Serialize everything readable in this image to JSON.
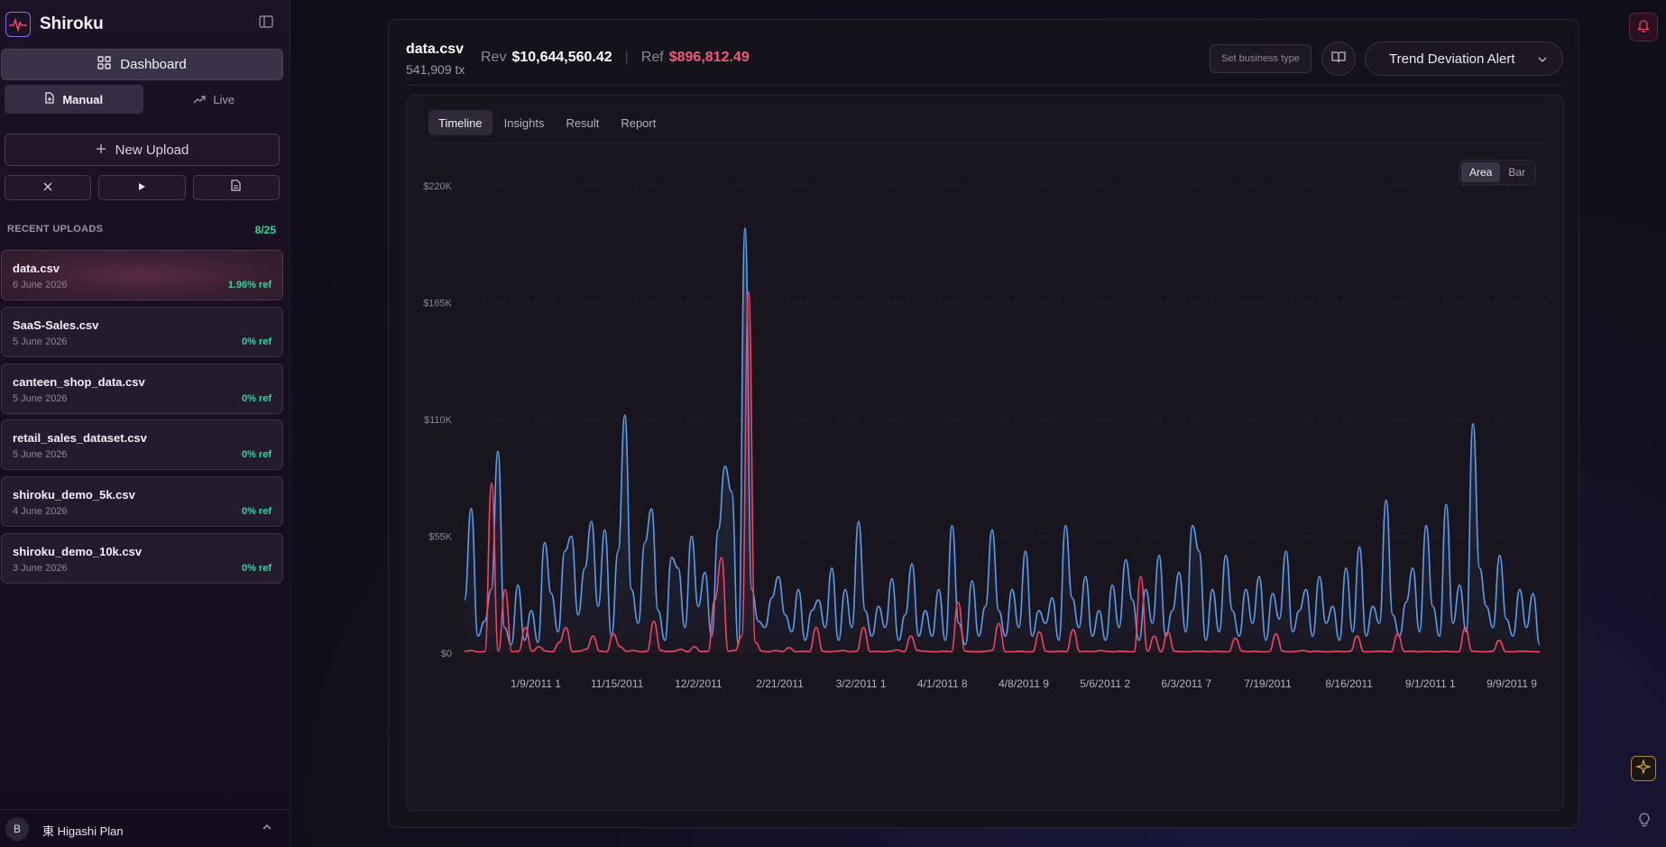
{
  "app": {
    "name": "Shiroku"
  },
  "sidebar": {
    "dashboard_label": "Dashboard",
    "modes": [
      {
        "label": "Manual",
        "active": true
      },
      {
        "label": "Live",
        "active": false
      }
    ],
    "new_upload_label": "New Upload",
    "recent": {
      "title": "RECENT UPLOADS",
      "count": "8/25",
      "items": [
        {
          "name": "data.csv",
          "date": "6 June 2026",
          "ref": "1.96% ref",
          "active": true
        },
        {
          "name": "SaaS-Sales.csv",
          "date": "5 June 2026",
          "ref": "0% ref"
        },
        {
          "name": "canteen_shop_data.csv",
          "date": "5 June 2026",
          "ref": "0% ref"
        },
        {
          "name": "retail_sales_dataset.csv",
          "date": "5 June 2026",
          "ref": "0% ref"
        },
        {
          "name": "shiroku_demo_5k.csv",
          "date": "4 June 2026",
          "ref": "0% ref"
        },
        {
          "name": "shiroku_demo_10k.csv",
          "date": "3 June 2026",
          "ref": "0% ref"
        }
      ]
    },
    "footer": {
      "avatar_initial": "B",
      "plan": "東 Higashi Plan"
    }
  },
  "header": {
    "file_name": "data.csv",
    "tx_count": "541,909 tx",
    "rev_label": "Rev",
    "rev_value": "$10,644,560.42",
    "ref_label": "Ref",
    "ref_value": "$896,812.49",
    "business_type_placeholder": "Set business type",
    "alert_select_value": "Trend Deviation Alert"
  },
  "tabs": [
    {
      "label": "Timeline",
      "active": true
    },
    {
      "label": "Insights",
      "active": false
    },
    {
      "label": "Result",
      "active": false
    },
    {
      "label": "Report",
      "active": false
    }
  ],
  "chart_toggle": [
    {
      "label": "Area",
      "active": true
    },
    {
      "label": "Bar",
      "active": false
    }
  ],
  "colors": {
    "revenue_series": "#5b9ded",
    "refund_series": "#f0445f",
    "accent_green": "#35d69a",
    "ref_red": "#f25a78"
  },
  "icons": {
    "logo": "pulse-chart-icon",
    "collapse": "sidebar-toggle-icon",
    "dashboard": "grid-icon",
    "manual": "document-icon",
    "live": "trend-up-icon",
    "new_upload": "plus-icon",
    "actions": [
      "close-icon",
      "play-icon",
      "file-text-icon"
    ],
    "book": "book-open-icon",
    "bell": "bell-icon",
    "sparkle": "sparkle-icon",
    "bulb": "lightbulb-icon"
  },
  "chart_data": {
    "type": "area",
    "title": "",
    "xlabel": "",
    "ylabel": "",
    "ylim": [
      0,
      220000
    ],
    "y_ticks": [
      "$0",
      "$55K",
      "$110K",
      "$165K",
      "$220K"
    ],
    "x_ticks": [
      "1/9/2011 1",
      "11/15/2011",
      "12/2/2011",
      "2/21/2011",
      "3/2/2011 1",
      "4/1/2011 8",
      "4/8/2011 9",
      "5/6/2011 2",
      "6/3/2011 7",
      "7/19/2011",
      "8/16/2011",
      "9/1/2011 1",
      "9/9/2011 9"
    ],
    "grid": true,
    "legend": "none",
    "series": [
      {
        "name": "",
        "color": "#5b9ded",
        "values": [
          25000,
          68000,
          8000,
          15000,
          30000,
          95000,
          12000,
          4000,
          32000,
          6000,
          20000,
          5000,
          52000,
          28000,
          10000,
          48000,
          55000,
          18000,
          40000,
          62000,
          22000,
          58000,
          8000,
          48000,
          112000,
          30000,
          14000,
          52000,
          68000,
          20000,
          6000,
          45000,
          40000,
          12000,
          55000,
          22000,
          38000,
          8000,
          58000,
          88000,
          76000,
          4000,
          200000,
          30000,
          15000,
          12000,
          26000,
          36000,
          18000,
          10000,
          30000,
          6000,
          20000,
          25000,
          12000,
          40000,
          6000,
          30000,
          12000,
          62000,
          20000,
          8000,
          22000,
          12000,
          35000,
          6000,
          18000,
          42000,
          8000,
          20000,
          8000,
          30000,
          6000,
          60000,
          14000,
          4000,
          34000,
          8000,
          22000,
          58000,
          20000,
          8000,
          30000,
          12000,
          48000,
          8000,
          20000,
          14000,
          26000,
          6000,
          60000,
          26000,
          12000,
          36000,
          8000,
          20000,
          6000,
          32000,
          12000,
          44000,
          25000,
          6000,
          30000,
          14000,
          46000,
          8000,
          20000,
          38000,
          10000,
          60000,
          48000,
          6000,
          30000,
          10000,
          46000,
          20000,
          8000,
          30000,
          14000,
          36000,
          6000,
          28000,
          16000,
          48000,
          10000,
          20000,
          30000,
          8000,
          36000,
          14000,
          22000,
          6000,
          40000,
          10000,
          50000,
          8000,
          22000,
          14000,
          72000,
          18000,
          8000,
          24000,
          40000,
          10000,
          60000,
          22000,
          8000,
          70000,
          14000,
          32000,
          10000,
          108000,
          40000,
          22000,
          12000,
          46000,
          16000,
          8000,
          30000,
          12000,
          28000,
          4000
        ]
      },
      {
        "name": "",
        "color": "#f0445f",
        "values": [
          800,
          1200,
          500,
          700,
          80000,
          900,
          30000,
          600,
          900,
          12000,
          800,
          3000,
          900,
          600,
          5000,
          12000,
          700,
          900,
          1800,
          8000,
          900,
          600,
          9000,
          3000,
          800,
          1200,
          600,
          900,
          15000,
          1200,
          700,
          900,
          1800,
          600,
          3000,
          700,
          900,
          25000,
          45000,
          900,
          1200,
          8000,
          170000,
          5000,
          900,
          600,
          1200,
          700,
          2500,
          600,
          900,
          700,
          12000,
          800,
          600,
          900,
          1200,
          600,
          900,
          12000,
          700,
          800,
          600,
          900,
          1500,
          600,
          8000,
          1200,
          900,
          700,
          600,
          900,
          600,
          24000,
          900,
          700,
          600,
          800,
          1200,
          14000,
          700,
          600,
          900,
          700,
          600,
          10000,
          800,
          600,
          900,
          700,
          11000,
          600,
          800,
          700,
          1200,
          800,
          600,
          900,
          700,
          600,
          36000,
          900,
          8000,
          600,
          10000,
          900,
          700,
          600,
          900,
          800,
          600,
          900,
          700,
          600,
          7000,
          900,
          600,
          800,
          600,
          700,
          9000,
          900,
          600,
          800,
          1200,
          600,
          900,
          700,
          600,
          800,
          600,
          900,
          8000,
          700,
          600,
          900,
          800,
          600,
          9000,
          700,
          900,
          600,
          800,
          700,
          600,
          900,
          700,
          600,
          12000,
          900,
          700,
          600,
          800,
          6000,
          700,
          600,
          900,
          800,
          700,
          600
        ]
      }
    ]
  }
}
